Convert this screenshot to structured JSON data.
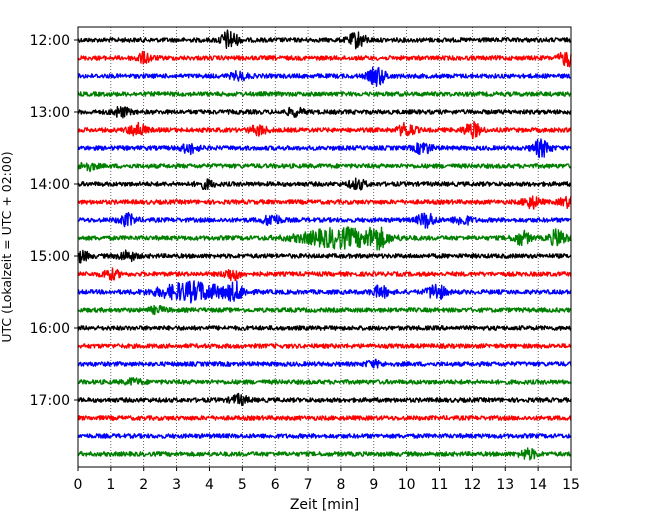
{
  "chart_data": {
    "type": "line",
    "title": "",
    "xlabel": "Zeit  [min]",
    "ylabel": "UTC (Lokalzeit = UTC + 02:00)",
    "xlim": [
      0,
      15
    ],
    "x_ticks": [
      0,
      1,
      2,
      3,
      4,
      5,
      6,
      7,
      8,
      9,
      10,
      11,
      12,
      13,
      14,
      15
    ],
    "x_tick_labels": [
      "0",
      "1",
      "2",
      "3",
      "4",
      "5",
      "6",
      "7",
      "8",
      "9",
      "10",
      "11",
      "12",
      "13",
      "14",
      "15"
    ],
    "y_tick_labels": [
      "12:00",
      "13:00",
      "14:00",
      "15:00",
      "16:00",
      "17:00"
    ],
    "grid": "vertical dotted lines at each minute",
    "traces": [
      {
        "start": "12:00",
        "color": "#000000",
        "events": [
          {
            "t": 4.6,
            "amp": 1.0
          },
          {
            "t": 8.5,
            "amp": 0.8
          }
        ]
      },
      {
        "start": "12:15",
        "color": "#ff0000",
        "events": [
          {
            "t": 2.0,
            "amp": 0.5
          },
          {
            "t": 14.9,
            "amp": 0.8
          }
        ]
      },
      {
        "start": "12:30",
        "color": "#0000ff",
        "events": [
          {
            "t": 9.1,
            "amp": 1.0
          },
          {
            "t": 4.9,
            "amp": 0.4
          }
        ]
      },
      {
        "start": "12:45",
        "color": "#008000",
        "events": []
      },
      {
        "start": "13:00",
        "color": "#000000",
        "events": [
          {
            "t": 1.3,
            "amp": 0.5
          },
          {
            "t": 6.6,
            "amp": 0.4
          }
        ]
      },
      {
        "start": "13:15",
        "color": "#ff0000",
        "events": [
          {
            "t": 1.8,
            "amp": 0.7
          },
          {
            "t": 5.5,
            "amp": 0.5
          },
          {
            "t": 10.0,
            "amp": 0.7
          },
          {
            "t": 12.0,
            "amp": 0.8
          }
        ]
      },
      {
        "start": "13:30",
        "color": "#0000ff",
        "events": [
          {
            "t": 3.4,
            "amp": 0.5
          },
          {
            "t": 10.5,
            "amp": 0.6
          },
          {
            "t": 14.1,
            "amp": 0.9
          }
        ]
      },
      {
        "start": "13:45",
        "color": "#008000",
        "events": [
          {
            "t": 0.3,
            "amp": 0.4
          }
        ]
      },
      {
        "start": "14:00",
        "color": "#000000",
        "events": [
          {
            "t": 3.9,
            "amp": 0.4
          },
          {
            "t": 8.5,
            "amp": 0.5
          }
        ]
      },
      {
        "start": "14:15",
        "color": "#ff0000",
        "events": [
          {
            "t": 13.8,
            "amp": 0.6
          },
          {
            "t": 14.9,
            "amp": 0.5
          }
        ]
      },
      {
        "start": "14:30",
        "color": "#0000ff",
        "events": [
          {
            "t": 1.5,
            "amp": 0.6
          },
          {
            "t": 5.9,
            "amp": 0.6
          },
          {
            "t": 10.6,
            "amp": 0.8
          },
          {
            "t": 11.7,
            "amp": 0.5
          }
        ]
      },
      {
        "start": "14:45",
        "color": "#008000",
        "events": [
          {
            "t": 8.0,
            "amp": 1.0,
            "width": 1.2
          },
          {
            "t": 9.1,
            "amp": 0.9
          },
          {
            "t": 13.5,
            "amp": 0.7
          },
          {
            "t": 14.6,
            "amp": 0.9
          }
        ]
      },
      {
        "start": "15:00",
        "color": "#000000",
        "events": [
          {
            "t": 0.05,
            "amp": 0.6
          },
          {
            "t": 1.5,
            "amp": 0.5
          }
        ]
      },
      {
        "start": "15:15",
        "color": "#ff0000",
        "events": [
          {
            "t": 1.0,
            "amp": 0.5
          },
          {
            "t": 4.7,
            "amp": 0.6
          }
        ]
      },
      {
        "start": "15:30",
        "color": "#0000ff",
        "events": [
          {
            "t": 3.5,
            "amp": 1.0,
            "width": 1.0
          },
          {
            "t": 4.8,
            "amp": 0.8
          },
          {
            "t": 9.2,
            "amp": 0.6
          },
          {
            "t": 10.9,
            "amp": 0.9
          }
        ]
      },
      {
        "start": "15:45",
        "color": "#008000",
        "events": [
          {
            "t": 2.4,
            "amp": 0.3
          }
        ]
      },
      {
        "start": "16:00",
        "color": "#000000",
        "events": []
      },
      {
        "start": "16:15",
        "color": "#ff0000",
        "events": []
      },
      {
        "start": "16:30",
        "color": "#0000ff",
        "events": [
          {
            "t": 9.0,
            "amp": 0.3
          }
        ]
      },
      {
        "start": "16:45",
        "color": "#008000",
        "events": [
          {
            "t": 1.7,
            "amp": 0.3
          }
        ]
      },
      {
        "start": "17:00",
        "color": "#000000",
        "events": [
          {
            "t": 4.9,
            "amp": 0.5
          }
        ]
      },
      {
        "start": "17:15",
        "color": "#ff0000",
        "events": []
      },
      {
        "start": "17:30",
        "color": "#0000ff",
        "events": []
      },
      {
        "start": "17:45",
        "color": "#008000",
        "events": [
          {
            "t": 13.7,
            "amp": 0.5
          }
        ]
      }
    ]
  }
}
